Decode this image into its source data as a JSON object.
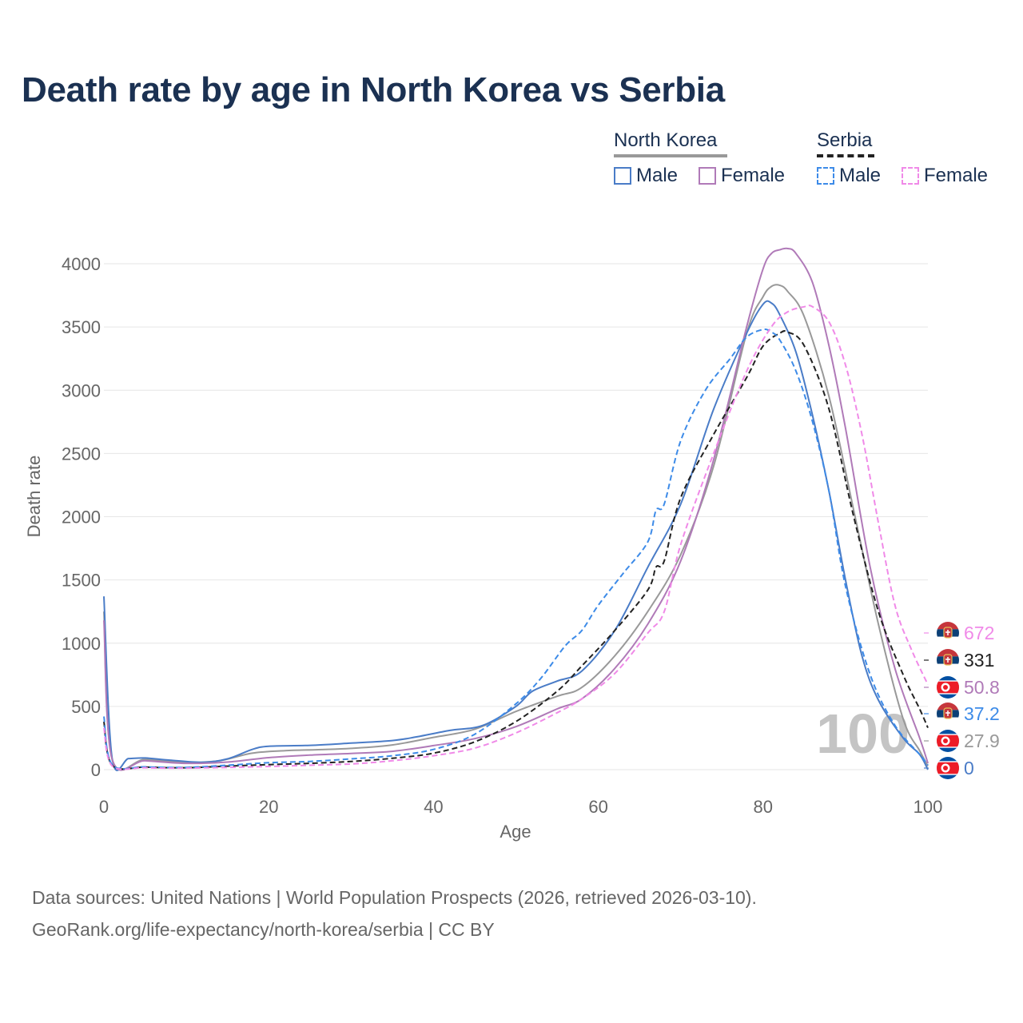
{
  "title": "Death rate by age in North Korea vs Serbia",
  "legend": {
    "groups": [
      {
        "name": "North Korea",
        "line_color": "#999999",
        "dash": false,
        "items": [
          {
            "label": "Male",
            "color": "#4a7cc7",
            "dash": false
          },
          {
            "label": "Female",
            "color": "#b07ab8",
            "dash": false
          }
        ]
      },
      {
        "name": "Serbia",
        "line_color": "#222222",
        "dash": true,
        "items": [
          {
            "label": "Male",
            "color": "#3d8be8",
            "dash": true
          },
          {
            "label": "Female",
            "color": "#f08ae8",
            "dash": true
          }
        ]
      }
    ]
  },
  "chart_data": {
    "type": "line",
    "title": "Death rate by age in North Korea vs Serbia",
    "xlabel": "Age",
    "ylabel": "Death rate",
    "xlim": [
      0,
      100
    ],
    "ylim": [
      0,
      4200
    ],
    "xticks": [
      0,
      20,
      40,
      60,
      80,
      100
    ],
    "yticks": [
      0,
      500,
      1000,
      1500,
      2000,
      2500,
      3000,
      3500,
      4000
    ],
    "grid": true,
    "watermark": "100",
    "series": [
      {
        "name": "North Korea (total)",
        "color": "#999999",
        "dash": false,
        "width": 2,
        "x": [
          0,
          1,
          5,
          10,
          14,
          18,
          22,
          26,
          30,
          35,
          40,
          45,
          50,
          55,
          58,
          62,
          66,
          70,
          74,
          78,
          80,
          81,
          82,
          83,
          85,
          88,
          91,
          94,
          97,
          99,
          100
        ],
        "y": [
          1250,
          85,
          80,
          58,
          70,
          130,
          150,
          158,
          168,
          195,
          255,
          320,
          460,
          580,
          650,
          900,
          1250,
          1700,
          2400,
          3450,
          3740,
          3820,
          3830,
          3780,
          3580,
          2950,
          2050,
          1150,
          400,
          150,
          27.9
        ]
      },
      {
        "name": "North Korea Male",
        "color": "#4a7cc7",
        "dash": false,
        "width": 2,
        "x": [
          0,
          1,
          3,
          5,
          8,
          12,
          15,
          18,
          20,
          25,
          30,
          35,
          38,
          42,
          46,
          50,
          52,
          55,
          58,
          62,
          66,
          70,
          74,
          78,
          80,
          81,
          82,
          84,
          86,
          88,
          90,
          92,
          94,
          97,
          99,
          100
        ],
        "y": [
          1370,
          90,
          88,
          92,
          75,
          58,
          85,
          160,
          185,
          192,
          210,
          230,
          260,
          310,
          350,
          500,
          620,
          700,
          780,
          1100,
          1600,
          2100,
          2850,
          3450,
          3680,
          3690,
          3600,
          3300,
          2800,
          2200,
          1500,
          900,
          550,
          250,
          120,
          0
        ]
      },
      {
        "name": "North Korea Female",
        "color": "#b07ab8",
        "dash": false,
        "width": 2,
        "x": [
          0,
          1,
          5,
          10,
          15,
          20,
          25,
          30,
          35,
          40,
          45,
          50,
          55,
          58,
          62,
          66,
          70,
          74,
          78,
          80,
          81,
          82,
          83,
          84,
          86,
          88,
          90,
          93,
          96,
          99,
          100
        ],
        "y": [
          1180,
          80,
          70,
          50,
          60,
          95,
          115,
          128,
          145,
          190,
          245,
          340,
          480,
          560,
          800,
          1150,
          1650,
          2450,
          3500,
          3960,
          4080,
          4110,
          4120,
          4080,
          3850,
          3350,
          2700,
          1600,
          800,
          250,
          50.8
        ]
      },
      {
        "name": "Serbia (total)",
        "color": "#222222",
        "dash": true,
        "width": 2,
        "x": [
          0,
          1,
          5,
          10,
          15,
          20,
          25,
          30,
          35,
          40,
          45,
          50,
          55,
          58,
          62,
          66,
          67,
          68,
          70,
          74,
          78,
          80,
          82,
          83,
          85,
          88,
          91,
          94,
          97,
          99,
          100
        ],
        "y": [
          380,
          35,
          20,
          15,
          28,
          40,
          50,
          65,
          90,
          130,
          220,
          380,
          620,
          820,
          1100,
          1420,
          1600,
          1650,
          2150,
          2650,
          3100,
          3350,
          3450,
          3460,
          3350,
          2850,
          2000,
          1250,
          750,
          480,
          331
        ]
      },
      {
        "name": "Serbia Male",
        "color": "#3d8be8",
        "dash": true,
        "width": 2,
        "x": [
          0,
          1,
          5,
          10,
          15,
          20,
          25,
          30,
          35,
          40,
          45,
          50,
          53,
          56,
          58,
          60,
          63,
          66,
          67,
          68,
          70,
          73,
          76,
          78,
          80,
          81,
          82,
          84,
          86,
          88,
          90,
          93,
          96,
          99,
          100
        ],
        "y": [
          420,
          40,
          22,
          18,
          35,
          55,
          65,
          85,
          110,
          160,
          280,
          520,
          720,
          980,
          1100,
          1300,
          1550,
          1800,
          2050,
          2100,
          2600,
          3000,
          3250,
          3420,
          3480,
          3460,
          3400,
          3150,
          2750,
          2200,
          1450,
          750,
          350,
          120,
          37.2
        ]
      },
      {
        "name": "Serbia Female",
        "color": "#f08ae8",
        "dash": true,
        "width": 2,
        "x": [
          0,
          1,
          5,
          10,
          15,
          20,
          25,
          30,
          35,
          40,
          45,
          50,
          55,
          58,
          62,
          66,
          68,
          70,
          74,
          78,
          81,
          83,
          85,
          86,
          88,
          90,
          92,
          94,
          96,
          98,
          100
        ],
        "y": [
          330,
          30,
          15,
          12,
          18,
          25,
          35,
          45,
          70,
          110,
          170,
          290,
          450,
          560,
          760,
          1080,
          1250,
          1780,
          2500,
          3150,
          3500,
          3620,
          3660,
          3660,
          3540,
          3200,
          2650,
          1950,
          1300,
          950,
          672
        ]
      }
    ],
    "end_labels": [
      {
        "text": "672",
        "color": "#f08ae8",
        "flag": "serbia"
      },
      {
        "text": "331",
        "color": "#222222",
        "flag": "serbia"
      },
      {
        "text": "50.8",
        "color": "#b07ab8",
        "flag": "north-korea"
      },
      {
        "text": "37.2",
        "color": "#3d8be8",
        "flag": "serbia"
      },
      {
        "text": "27.9",
        "color": "#999999",
        "flag": "north-korea"
      },
      {
        "text": "0",
        "color": "#4a7cc7",
        "flag": "north-korea"
      }
    ]
  },
  "footer": {
    "line1": "Data sources: United Nations | World Population Prospects (2026, retrieved 2026-03-10).",
    "line2": "GeoRank.org/life-expectancy/north-korea/serbia | CC BY"
  }
}
